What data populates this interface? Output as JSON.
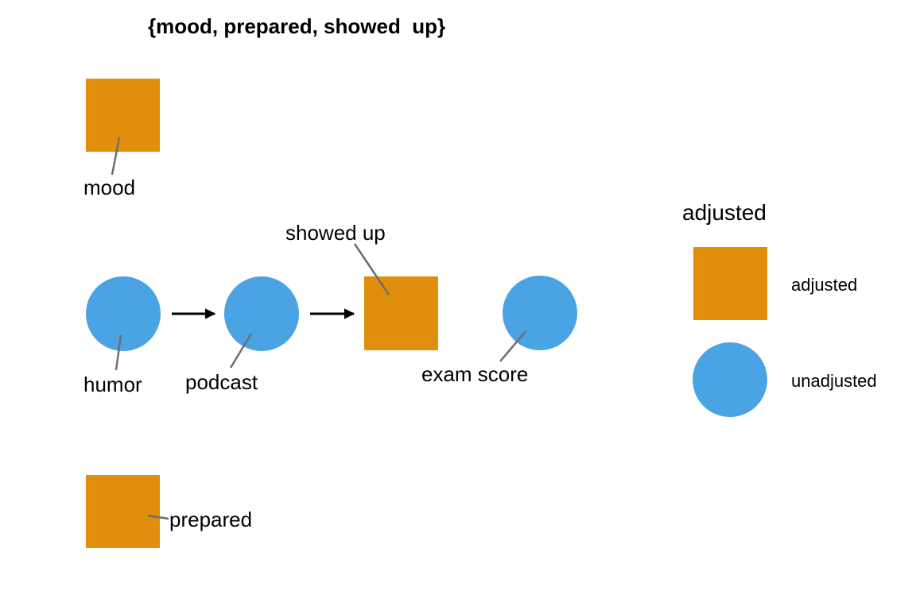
{
  "title": "{mood, prepared, showed  up}",
  "colors": {
    "adjusted": "#E08E0B",
    "unadjusted": "#4AA3E2",
    "edge": "#000000",
    "leader": "#6E6E6E"
  },
  "nodes": {
    "mood": {
      "label": "mood",
      "status": "adjusted",
      "shape": "square"
    },
    "humor": {
      "label": "humor",
      "status": "unadjusted",
      "shape": "circle"
    },
    "podcast": {
      "label": "podcast",
      "status": "unadjusted",
      "shape": "circle"
    },
    "showed_up": {
      "label": "showed up",
      "status": "adjusted",
      "shape": "square"
    },
    "exam_score": {
      "label": "exam score",
      "status": "unadjusted",
      "shape": "circle"
    },
    "prepared": {
      "label": "prepared",
      "status": "adjusted",
      "shape": "square"
    }
  },
  "edges": [
    {
      "from": "humor",
      "to": "podcast"
    },
    {
      "from": "podcast",
      "to": "showed_up"
    }
  ],
  "legend": {
    "title": "adjusted",
    "items": {
      "adjusted": {
        "label": "adjusted",
        "shape": "square"
      },
      "unadjusted": {
        "label": "unadjusted",
        "shape": "circle"
      }
    }
  }
}
